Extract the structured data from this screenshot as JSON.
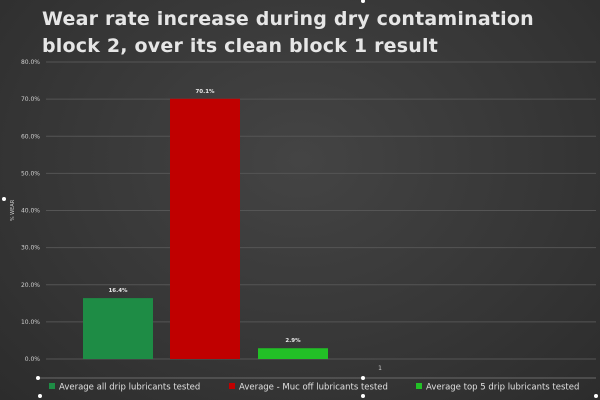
{
  "chart_data": {
    "type": "bar",
    "title": "Wear rate increase during dry contamination block 2, over its clean block 1 result",
    "ylabel": "% WEAR",
    "xlabel": "",
    "ylim": [
      0,
      80
    ],
    "ytick_step": 10,
    "ytick_suffix": "%",
    "categories": [
      "1"
    ],
    "grid": true,
    "legend_position": "bottom",
    "series": [
      {
        "name": "Average all drip lubricants tested",
        "values": [
          16.4
        ],
        "color": "#1e8c45",
        "label": "16.4%"
      },
      {
        "name": "Average - Muc off lubricants tested",
        "values": [
          70.1
        ],
        "color": "#c00000",
        "label": "70.1%"
      },
      {
        "name": "Average top 5 drip lubricants tested",
        "values": [
          2.9
        ],
        "color": "#22c026",
        "label": "2.9%"
      }
    ]
  }
}
